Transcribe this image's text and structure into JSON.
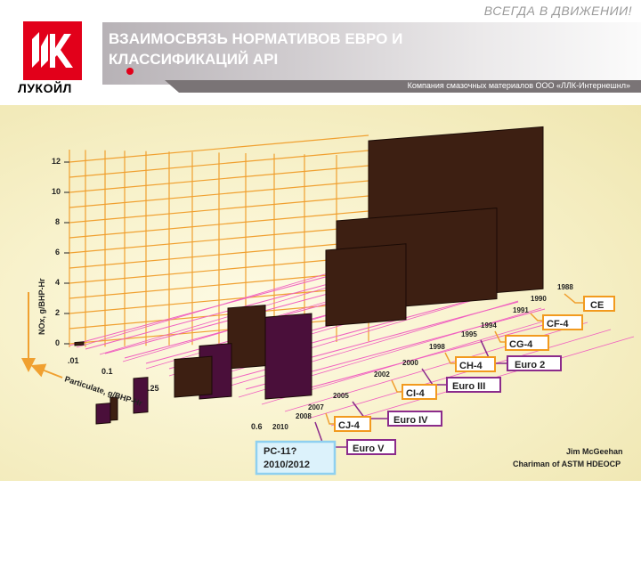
{
  "header": {
    "slogan": "ВСЕГДА В ДВИЖЕНИИ!",
    "title_line1": "ВЗАИМОСВЯЗЬ НОРМАТИВОВ ЕВРО И",
    "title_line2": "КЛАССИФИКАЦИЙ API",
    "company": "Компания смазочных материалов ООО «ЛЛК-Интернешнл»",
    "logo_text": "ЛУКОЙЛ"
  },
  "colors": {
    "brand_red": "#e2001a",
    "bar_brown": "#3d1f12",
    "bar_purple": "#4a0f3a",
    "grid_orange": "#f0a030",
    "grid_pink": "#f060c0",
    "api_label_orange": "#f29a1e",
    "euro_label_purple": "#8b2b8b",
    "pc11_blue": "#8fd0f0"
  },
  "chart_data": {
    "type": "3d-bar",
    "ylabel": "NOx, g/BHP-Hr",
    "xlabel": "Particulate, g/BHP-Hr",
    "y_ticks": [
      "0",
      "2",
      "4",
      "6",
      "8",
      "10",
      "12"
    ],
    "x_ticks": [
      ".01",
      "0.1",
      ".25",
      "0.6"
    ],
    "years": [
      "1988",
      "1990",
      "1991",
      "1994",
      "1995",
      "1998",
      "2000",
      "2002",
      "2005",
      "2007",
      "2008",
      "2010"
    ],
    "api_categories": [
      "CE",
      "CF-4",
      "CG-4",
      "CH-4",
      "CI-4",
      "CJ-4",
      "PC-11?\n2010/2012"
    ],
    "euro_categories": [
      "Euro 2",
      "Euro III",
      "Euro IV",
      "Euro V"
    ],
    "series": [
      {
        "name": "CE",
        "year": "1988",
        "nox": 10.7,
        "pm": 0.6,
        "color": "brown"
      },
      {
        "name": "CF-4",
        "year": "1990",
        "nox": 6.0,
        "pm": 0.6,
        "color": "brown"
      },
      {
        "name": "CG-4",
        "year": "1991",
        "nox": 5.0,
        "pm": 0.25,
        "color": "brown"
      },
      {
        "name": "Euro 2",
        "year": "1995",
        "nox": 5.4,
        "pm": 0.25,
        "color": "purple"
      },
      {
        "name": "CH-4",
        "year": "1998",
        "nox": 4.0,
        "pm": 0.1,
        "color": "brown"
      },
      {
        "name": "Euro III",
        "year": "2000",
        "nox": 3.5,
        "pm": 0.1,
        "color": "purple"
      },
      {
        "name": "CI-4",
        "year": "2002",
        "nox": 2.5,
        "pm": 0.1,
        "color": "brown"
      },
      {
        "name": "Euro IV",
        "year": "2005",
        "nox": 2.3,
        "pm": 0.03,
        "color": "purple"
      },
      {
        "name": "CJ-4",
        "year": "2007",
        "nox": 1.5,
        "pm": 0.01,
        "color": "brown"
      },
      {
        "name": "Euro V",
        "year": "2008",
        "nox": 1.3,
        "pm": 0.01,
        "color": "purple"
      },
      {
        "name": "PC-11",
        "year": "2010",
        "nox": 0.2,
        "pm": 0.01,
        "color": "brown"
      }
    ]
  },
  "credit": {
    "line1": "Jim McGeehan",
    "line2": "Chariman of ASTM HDEOCP"
  }
}
